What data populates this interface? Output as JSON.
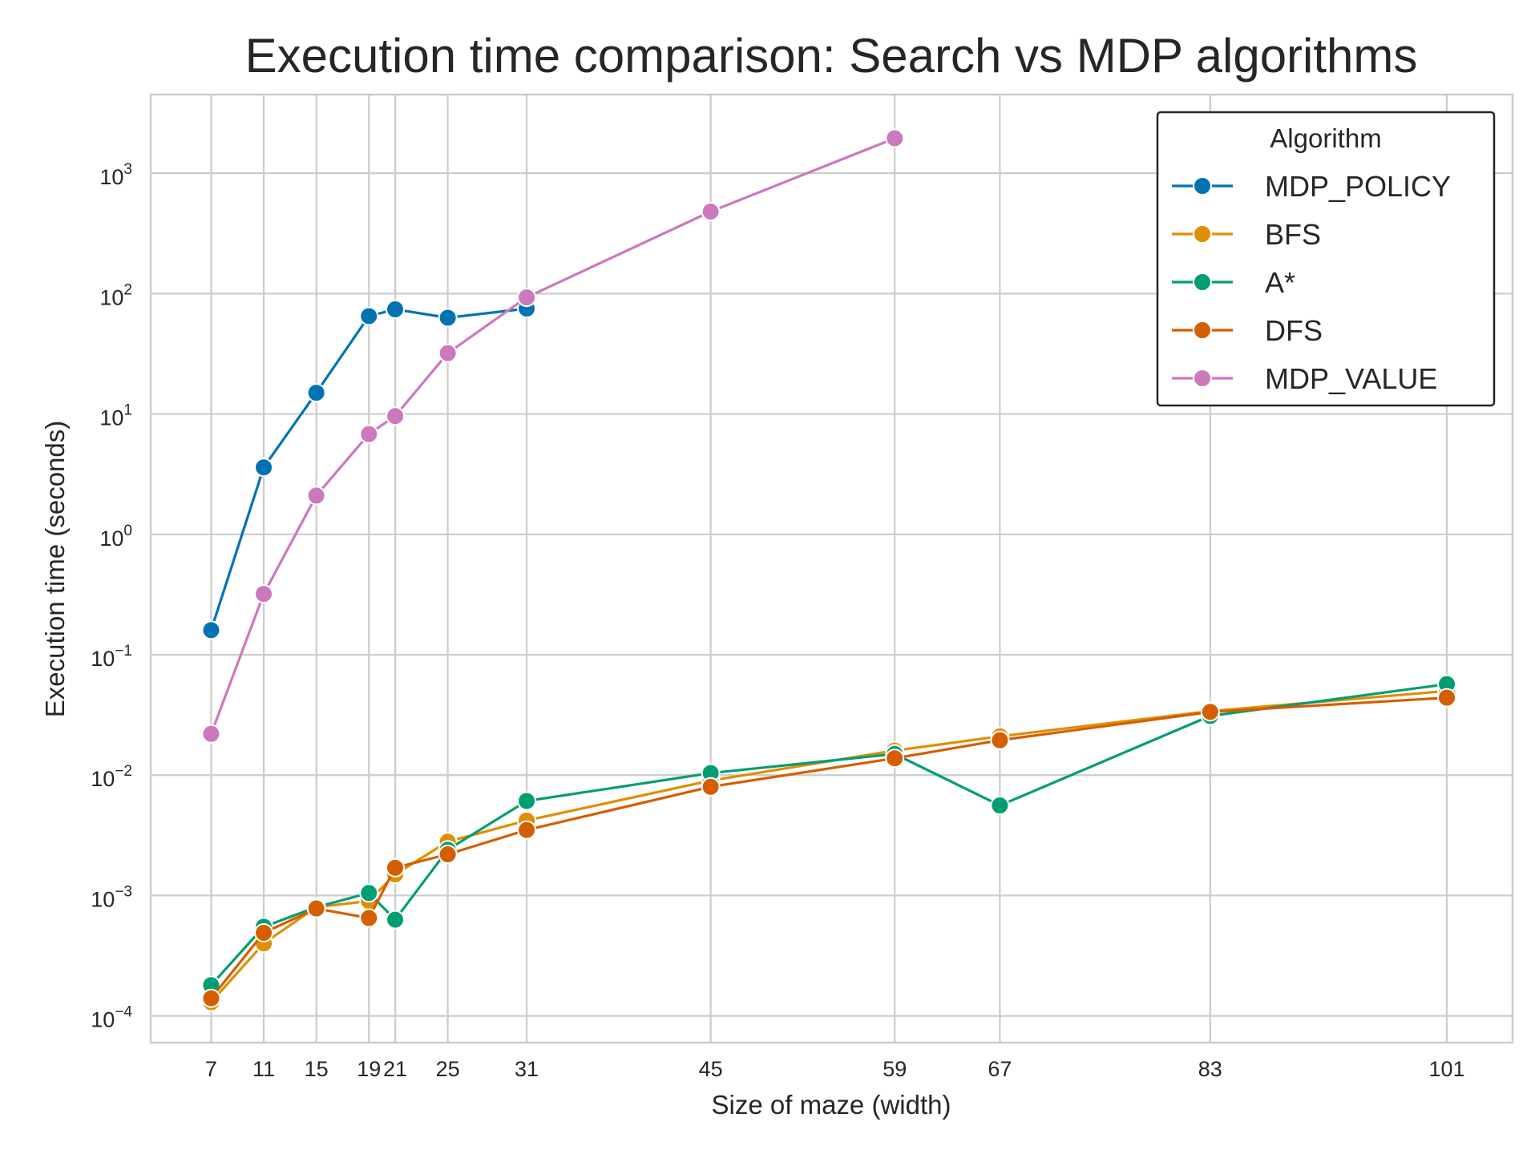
{
  "chart_data": {
    "type": "line",
    "title": "Execution time comparison: Search vs MDP algorithms",
    "xlabel": "Size of maze (width)",
    "ylabel": "Execution time (seconds)",
    "x_ticks": [
      7,
      11,
      15,
      19,
      21,
      25,
      31,
      45,
      59,
      67,
      83,
      101
    ],
    "x_tick_labels": [
      "7",
      "11",
      "15",
      "19",
      "21",
      "25",
      "31",
      "45",
      "59",
      "67",
      "83",
      "101"
    ],
    "xlim": [
      2.4,
      106
    ],
    "y_scale": "log",
    "ylim": [
      6e-05,
      4500
    ],
    "y_ticks": [
      {
        "value": 0.0001,
        "base": "10",
        "exp": "−4"
      },
      {
        "value": 0.001,
        "base": "10",
        "exp": "−3"
      },
      {
        "value": 0.01,
        "base": "10",
        "exp": "−2"
      },
      {
        "value": 0.1,
        "base": "10",
        "exp": "−1"
      },
      {
        "value": 1,
        "base": "10",
        "exp": "0"
      },
      {
        "value": 10,
        "base": "10",
        "exp": "1"
      },
      {
        "value": 100,
        "base": "10",
        "exp": "2"
      },
      {
        "value": 1000,
        "base": "10",
        "exp": "3"
      }
    ],
    "grid": true,
    "legend": {
      "title": "Algorithm",
      "position": "top-right"
    },
    "series": [
      {
        "name": "MDP_POLICY",
        "color": "#0173b2",
        "x": [
          7,
          11,
          15,
          19,
          21,
          25,
          31
        ],
        "y": [
          0.16,
          3.6,
          15,
          65,
          74,
          63,
          75
        ]
      },
      {
        "name": "BFS",
        "color": "#de8f05",
        "x": [
          7,
          11,
          15,
          19,
          21,
          25,
          31,
          45,
          59,
          67,
          83,
          101
        ],
        "y": [
          0.00013,
          0.0004,
          0.0008,
          0.0009,
          0.0015,
          0.0028,
          0.0042,
          0.009,
          0.016,
          0.021,
          0.034,
          0.05
        ]
      },
      {
        "name": "A*",
        "color": "#029e73",
        "x": [
          7,
          11,
          15,
          19,
          21,
          25,
          31,
          45,
          59,
          67,
          83,
          101
        ],
        "y": [
          0.00018,
          0.00055,
          0.0008,
          0.00105,
          0.00063,
          0.0024,
          0.0061,
          0.0104,
          0.015,
          0.0056,
          0.031,
          0.057
        ]
      },
      {
        "name": "DFS",
        "color": "#d55e00",
        "x": [
          7,
          11,
          15,
          19,
          21,
          25,
          31,
          45,
          59,
          67,
          83,
          101
        ],
        "y": [
          0.00014,
          0.00049,
          0.00078,
          0.00065,
          0.0017,
          0.0022,
          0.0035,
          0.008,
          0.0138,
          0.0195,
          0.0335,
          0.044
        ]
      },
      {
        "name": "MDP_VALUE",
        "color": "#cc78bc",
        "x": [
          7,
          11,
          15,
          19,
          21,
          25,
          31,
          45,
          59
        ],
        "y": [
          0.022,
          0.32,
          2.1,
          6.8,
          9.6,
          32,
          93,
          480,
          1950
        ]
      }
    ]
  }
}
